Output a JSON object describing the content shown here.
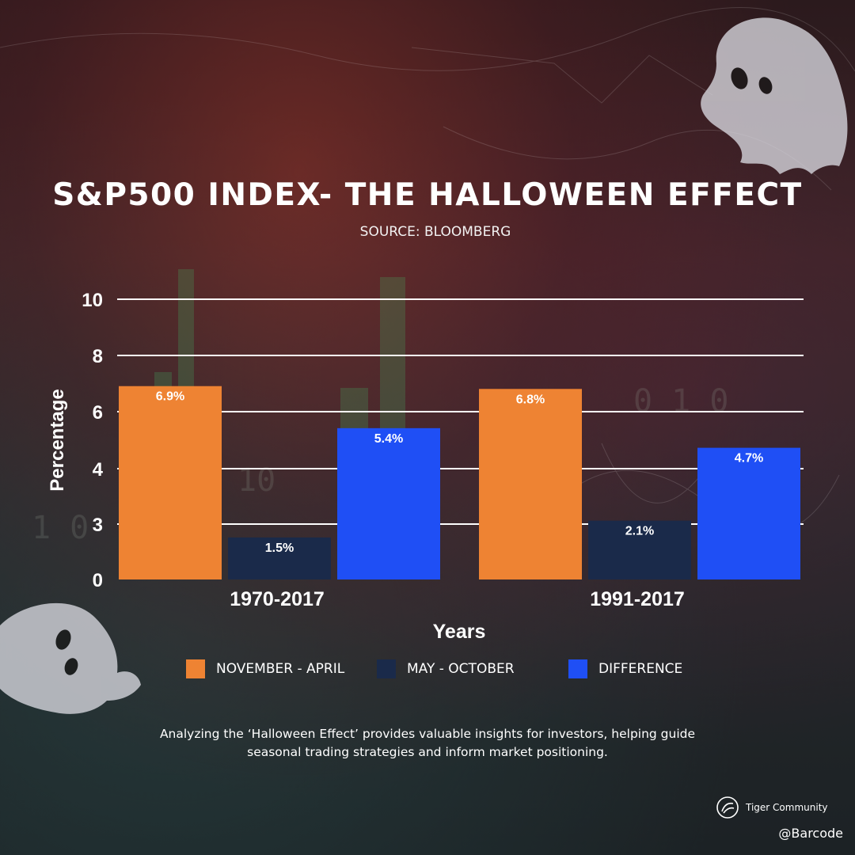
{
  "colors": {
    "nov_apr": "#ee8333",
    "may_oct": "#1a2a4a",
    "difference": "#1f4ff5",
    "text": "#ffffff"
  },
  "header": {
    "title": "S&P500 INDEX- THE HALLOWEEN EFFECT",
    "subtitle": "SOURCE: BLOOMBERG"
  },
  "chart_data": {
    "type": "bar",
    "categories": [
      "1970-2017",
      "1991-2017"
    ],
    "series": [
      {
        "name": "NOVEMBER - APRIL",
        "values": [
          6.9,
          6.8
        ],
        "labels": [
          "6.9%",
          "6.8%"
        ],
        "color": "#ee8333"
      },
      {
        "name": "MAY - OCTOBER",
        "values": [
          1.5,
          2.1
        ],
        "labels": [
          "1.5%",
          "2.1%"
        ],
        "color": "#1a2a4a"
      },
      {
        "name": "DIFFERENCE",
        "values": [
          5.4,
          4.7
        ],
        "labels": [
          "5.4%",
          "4.7%"
        ],
        "color": "#1f4ff5"
      }
    ],
    "xlabel": "Years",
    "ylabel": "Percentage",
    "y_ticks": [
      "0",
      "3",
      "4",
      "6",
      "8",
      "10"
    ],
    "ylim": [
      0,
      10
    ],
    "grid": true,
    "legend_position": "bottom"
  },
  "footer": {
    "caption_line1": "Analyzing the ‘Halloween Effect’ provides valuable insights for investors, helping guide",
    "caption_line2": "seasonal trading strategies and inform market positioning.",
    "brand_name": "Tiger Community",
    "handle": "@Barcode"
  },
  "icons": [
    "ghost-icon",
    "tiger-community-logo-icon"
  ]
}
